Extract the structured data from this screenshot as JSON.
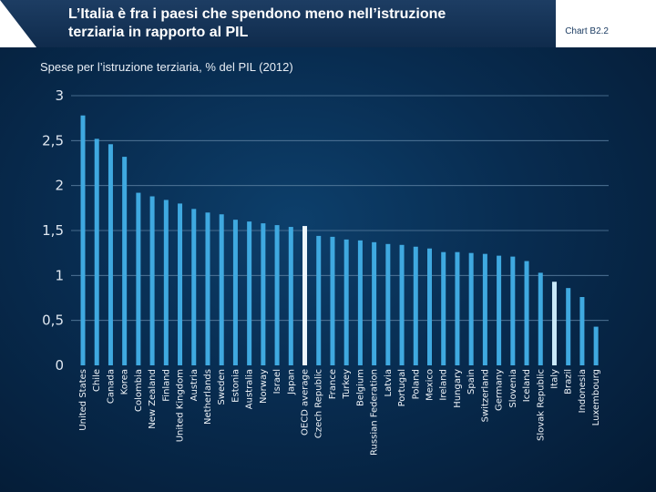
{
  "header": {
    "title_line1": "L’Italia è fra i paesi che spendono meno nell’istruzione",
    "title_line2": "terziaria in rapporto al PIL",
    "chart_id": "Chart B2.2"
  },
  "colors": {
    "bar": "#3fa9e0",
    "oecd_average": "#eef6fc",
    "italy": "#c9e8f8",
    "grid": "#5a7fa0"
  },
  "chart_data": {
    "type": "bar",
    "title": "Spese per l’istruzione terziaria, % del PIL (2012)",
    "xlabel": "",
    "ylabel": "",
    "ylim": [
      0,
      3
    ],
    "yticks": [
      0,
      0.5,
      1,
      1.5,
      2,
      2.5,
      3
    ],
    "ytick_labels": [
      "0",
      "0,5",
      "1",
      "1,5",
      "2",
      "2,5",
      "3"
    ],
    "categories": [
      "United States",
      "Chile",
      "Canada",
      "Korea",
      "Colombia",
      "New Zealand",
      "Finland",
      "United Kingdom",
      "Austria",
      "Netherlands",
      "Sweden",
      "Estonia",
      "Australia",
      "Norway",
      "Israel",
      "Japan",
      "OECD average",
      "Czech Republic",
      "France",
      "Turkey",
      "Belgium",
      "Russian Federation",
      "Latvia",
      "Portugal",
      "Poland",
      "Mexico",
      "Ireland",
      "Hungary",
      "Spain",
      "Switzerland",
      "Germany",
      "Slovenia",
      "Iceland",
      "Slovak Republic",
      "Italy",
      "Brazil",
      "Indonesia",
      "Luxembourg"
    ],
    "values": [
      2.78,
      2.52,
      2.46,
      2.32,
      1.92,
      1.88,
      1.84,
      1.8,
      1.74,
      1.7,
      1.68,
      1.62,
      1.6,
      1.58,
      1.56,
      1.54,
      1.55,
      1.44,
      1.43,
      1.4,
      1.39,
      1.37,
      1.35,
      1.34,
      1.32,
      1.3,
      1.26,
      1.26,
      1.25,
      1.24,
      1.22,
      1.21,
      1.16,
      1.03,
      0.93,
      0.86,
      0.76,
      0.43
    ],
    "highlight": {
      "OECD average": "oecd_average",
      "Italy": "italy"
    }
  }
}
